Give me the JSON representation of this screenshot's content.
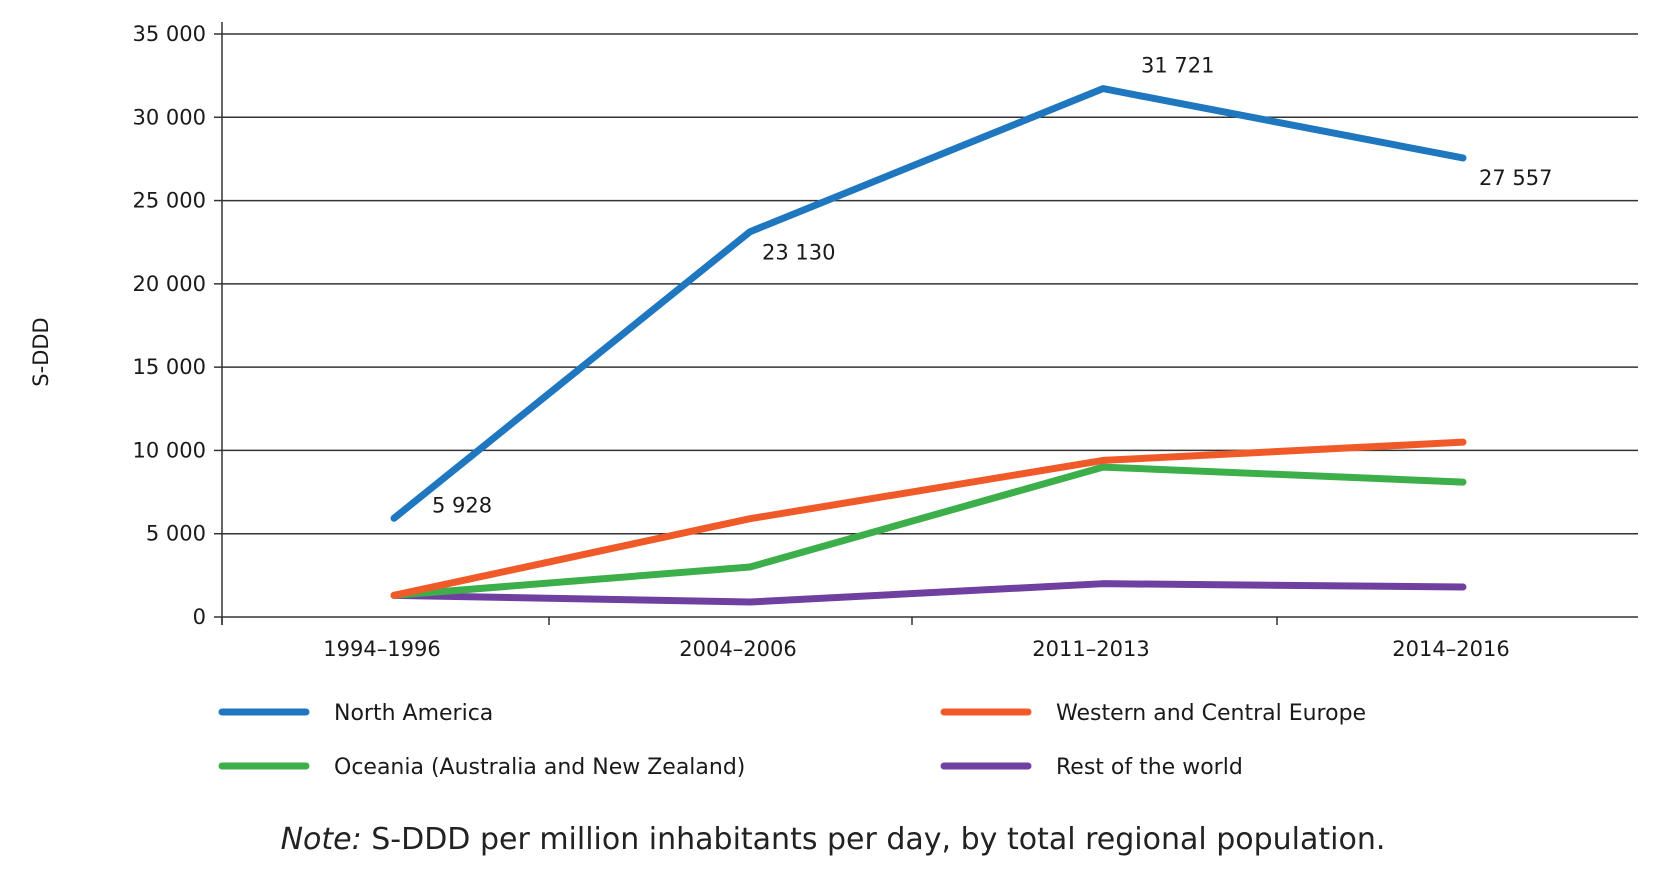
{
  "chart_data": {
    "type": "line",
    "ylabel": "S-DDD",
    "ylim": [
      0,
      35000
    ],
    "yticks": [
      {
        "value": 0,
        "label": "0"
      },
      {
        "value": 5000,
        "label": "5 000"
      },
      {
        "value": 10000,
        "label": "10 000"
      },
      {
        "value": 15000,
        "label": "15 000"
      },
      {
        "value": 20000,
        "label": "20 000"
      },
      {
        "value": 25000,
        "label": "25 000"
      },
      {
        "value": 30000,
        "label": "30 000"
      },
      {
        "value": 35000,
        "label": "35 000"
      }
    ],
    "grid": true,
    "legend_position": "bottom",
    "categories": [
      "1994–1996",
      "2004–2006",
      "2011–2013",
      "2014–2016"
    ],
    "series": [
      {
        "name": "North America",
        "color": "#1f77c0",
        "values": [
          5928,
          23130,
          31721,
          27557
        ],
        "data_labels": [
          "5 928",
          "23 130",
          "31 721",
          "27 557"
        ]
      },
      {
        "name": "Western and Central Europe",
        "color": "#f05a28",
        "values": [
          1300,
          5900,
          9400,
          10500
        ]
      },
      {
        "name": "Oceania (Australia and New Zealand)",
        "color": "#3daf4a",
        "values": [
          1300,
          3000,
          9000,
          8100
        ]
      },
      {
        "name": "Rest of the world",
        "color": "#7040a0",
        "values": [
          1300,
          900,
          2000,
          1800
        ]
      }
    ]
  },
  "note": {
    "prefix": "Note:",
    "text": " S-DDD per million inhabitants per day, by total regional population."
  }
}
